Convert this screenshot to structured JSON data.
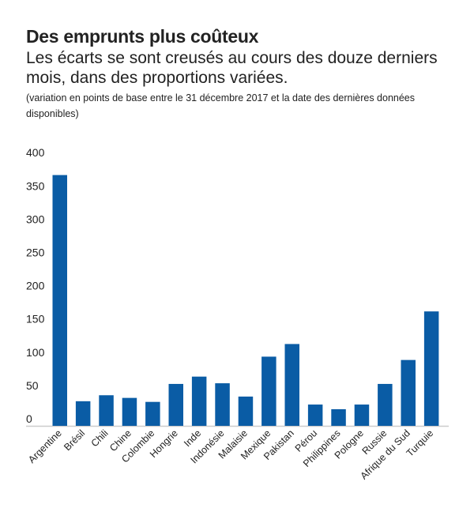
{
  "header": {
    "title": "Des emprunts plus coûteux",
    "subtitle": "Les écarts se sont creusés au cours des douze derniers mois, dans des proportions variées.",
    "note": "(variation en points de base entre le 31 décembre 2017 et la date des dernières données disponibles)"
  },
  "chart_data": {
    "type": "bar",
    "title": "Des emprunts plus coûteux",
    "xlabel": "",
    "ylabel": "",
    "ylim": [
      0,
      400
    ],
    "yticks": [
      0,
      50,
      100,
      150,
      200,
      250,
      300,
      350,
      400
    ],
    "grid": false,
    "color": "#0a5ca5",
    "categories": [
      "Argentine",
      "Brésil",
      "Chili",
      "Chine",
      "Colombie",
      "Hongrie",
      "Inde",
      "Indonésie",
      "Malaisie",
      "Mexique",
      "Pakistan",
      "Pérou",
      "Philippines",
      "Pologne",
      "Russie",
      "Afrique du Sud",
      "Turquie"
    ],
    "values": [
      377,
      37,
      46,
      42,
      36,
      63,
      74,
      64,
      44,
      104,
      123,
      32,
      25,
      32,
      63,
      99,
      172
    ]
  }
}
